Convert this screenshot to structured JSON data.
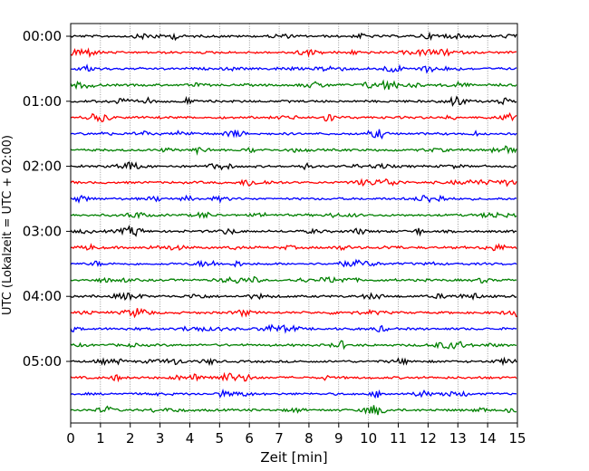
{
  "chart_data": {
    "type": "line",
    "title": "",
    "xlabel": "Zeit  [min]",
    "ylabel": "UTC (Lokalzeit = UTC + 02:00)",
    "xlim": [
      0,
      15
    ],
    "x_ticks": [
      "0",
      "1",
      "2",
      "3",
      "4",
      "5",
      "6",
      "7",
      "8",
      "9",
      "10",
      "11",
      "12",
      "13",
      "14",
      "15"
    ],
    "y_tick_labels": [
      "00:00",
      "01:00",
      "02:00",
      "03:00",
      "04:00",
      "05:00"
    ],
    "rows_per_hour": 4,
    "row_count": 24,
    "row_colors": [
      "#000000",
      "#ff0000",
      "#0000ff",
      "#008000"
    ],
    "grid": "vertical dotted lines at each minute"
  }
}
